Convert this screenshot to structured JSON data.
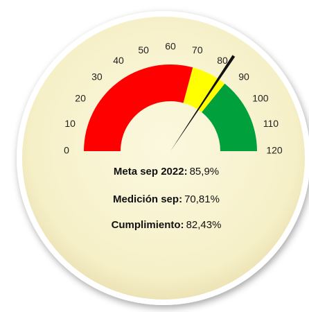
{
  "chart_data": {
    "type": "gauge",
    "min": 0,
    "max": 120,
    "ticks": [
      0,
      10,
      20,
      30,
      40,
      50,
      60,
      70,
      80,
      90,
      100,
      110,
      120
    ],
    "bands": [
      {
        "from": 0,
        "to": 70,
        "color": "#ff0000"
      },
      {
        "from": 70,
        "to": 85.9,
        "color": "#ffff00"
      },
      {
        "from": 85.9,
        "to": 120,
        "color": "#00a03c"
      }
    ],
    "value": 82.43,
    "needle_color": "#111111",
    "annotations": [
      {
        "label": "Meta sep 2022:",
        "value": "85,9%"
      },
      {
        "label": "Medición sep:",
        "value": "70,81%"
      },
      {
        "label": "Cumplimiento:",
        "value": "82,43%"
      }
    ]
  }
}
